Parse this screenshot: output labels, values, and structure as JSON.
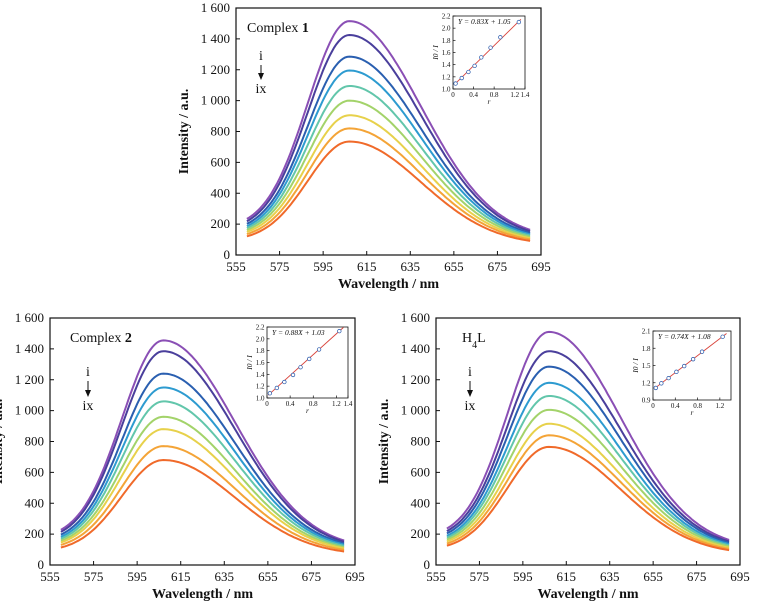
{
  "colors": {
    "curves": [
      "#e8372d",
      "#f06a2a",
      "#f4a437",
      "#e7d14b",
      "#a3d36a",
      "#62c6ab",
      "#2d9bd0",
      "#2a5fb0",
      "#4a3f9c",
      "#8a4fb5"
    ],
    "fit_line": "#d9433b",
    "markers": "#2255aa"
  },
  "chart_data": [
    {
      "type": "line",
      "title_prefix": "Complex ",
      "title_bold": "1",
      "title_sub": "",
      "title_suffix": "",
      "xlabel": "Wavelength / nm",
      "ylabel": "Intensity / a.u.",
      "xlim": [
        555,
        695
      ],
      "ylim": [
        0,
        1600
      ],
      "xticks": [
        555,
        575,
        595,
        615,
        635,
        655,
        675,
        695
      ],
      "yticks": [
        0,
        200,
        400,
        600,
        800,
        1000,
        1200,
        1400,
        1600
      ],
      "xtick_labels": [
        "555",
        "575",
        "595",
        "615",
        "635",
        "655",
        "675",
        "695"
      ],
      "ytick_labels": [
        "0",
        "200",
        "400",
        "600",
        "800",
        "1 000",
        "1 200",
        "1 400",
        "1 600"
      ],
      "x_range_curves": [
        560,
        690
      ],
      "peak_wavelength": 607,
      "curves": [
        {
          "peak": 1515,
          "start": 310,
          "end": 295
        },
        {
          "peak": 1425,
          "start": 290,
          "end": 280
        },
        {
          "peak": 1285,
          "start": 270,
          "end": 265
        },
        {
          "peak": 1195,
          "start": 250,
          "end": 250
        },
        {
          "peak": 1095,
          "start": 235,
          "end": 238
        },
        {
          "peak": 1000,
          "start": 220,
          "end": 225
        },
        {
          "peak": 905,
          "start": 205,
          "end": 212
        },
        {
          "peak": 820,
          "start": 185,
          "end": 198
        },
        {
          "peak": 735,
          "start": 165,
          "end": 180
        }
      ],
      "arrow_top": "i",
      "arrow_bottom": "ix",
      "inset": {
        "equation": "Y = 0.83X + 1.05",
        "ylabel": "I0 / I",
        "xlabel": "r",
        "xlim": [
          0,
          1.4
        ],
        "ylim": [
          1.0,
          2.2
        ],
        "xticks": [
          0,
          0.4,
          0.8,
          1.2
        ],
        "xtick_labels": [
          "0",
          "0.4",
          "0.8",
          "1.2"
        ],
        "xticks_extra": [
          1.4
        ],
        "xtick_labels_extra": [
          "1.4"
        ],
        "yticks": [
          1.0,
          1.2,
          1.4,
          1.6,
          1.8,
          2.0,
          2.2
        ],
        "ytick_labels": [
          "1.0",
          "1.2",
          "1.4",
          "1.6",
          "1.8",
          "2.0",
          "2.2"
        ],
        "slope": 0.83,
        "intercept": 1.05,
        "points_x": [
          0.05,
          0.17,
          0.3,
          0.42,
          0.55,
          0.73,
          0.92,
          1.28
        ],
        "points_y": [
          1.09,
          1.18,
          1.28,
          1.38,
          1.52,
          1.68,
          1.85,
          2.1
        ]
      }
    },
    {
      "type": "line",
      "title_prefix": "Complex ",
      "title_bold": "2",
      "title_sub": "",
      "title_suffix": "",
      "xlabel": "Wavelength / nm",
      "ylabel": "Intensity / a.u.",
      "xlim": [
        555,
        695
      ],
      "ylim": [
        0,
        1600
      ],
      "xticks": [
        555,
        575,
        595,
        615,
        635,
        655,
        675,
        695
      ],
      "yticks": [
        0,
        200,
        400,
        600,
        800,
        1000,
        1200,
        1400,
        1600
      ],
      "xtick_labels": [
        "555",
        "575",
        "595",
        "615",
        "635",
        "655",
        "675",
        "695"
      ],
      "ytick_labels": [
        "0",
        "200",
        "400",
        "600",
        "800",
        "1 000",
        "1 200",
        "1 400",
        "1 600"
      ],
      "x_range_curves": [
        560,
        690
      ],
      "peak_wavelength": 607,
      "curves": [
        {
          "peak": 1455,
          "start": 305,
          "end": 290
        },
        {
          "peak": 1385,
          "start": 285,
          "end": 275
        },
        {
          "peak": 1240,
          "start": 265,
          "end": 262
        },
        {
          "peak": 1150,
          "start": 245,
          "end": 248
        },
        {
          "peak": 1060,
          "start": 230,
          "end": 235
        },
        {
          "peak": 960,
          "start": 215,
          "end": 222
        },
        {
          "peak": 880,
          "start": 200,
          "end": 210
        },
        {
          "peak": 770,
          "start": 180,
          "end": 195
        },
        {
          "peak": 680,
          "start": 155,
          "end": 175
        }
      ],
      "arrow_top": "i",
      "arrow_bottom": "ix",
      "inset": {
        "equation": "Y = 0.88X + 1.03",
        "ylabel": "I0 / I",
        "xlabel": "r",
        "xlim": [
          0,
          1.4
        ],
        "ylim": [
          1.0,
          2.2
        ],
        "xticks": [
          0,
          0.4,
          0.8,
          1.2
        ],
        "xtick_labels": [
          "0",
          "0.4",
          "0.8",
          "1.2"
        ],
        "xticks_extra": [
          1.4
        ],
        "xtick_labels_extra": [
          "1.4"
        ],
        "yticks": [
          1.0,
          1.2,
          1.4,
          1.6,
          1.8,
          2.0,
          2.2
        ],
        "ytick_labels": [
          "1.0",
          "1.2",
          "1.4",
          "1.6",
          "1.8",
          "2.0",
          "2.2"
        ],
        "slope": 0.88,
        "intercept": 1.03,
        "points_x": [
          0.05,
          0.17,
          0.3,
          0.45,
          0.58,
          0.73,
          0.9,
          1.25
        ],
        "points_y": [
          1.08,
          1.17,
          1.27,
          1.39,
          1.52,
          1.66,
          1.82,
          2.13
        ]
      }
    },
    {
      "type": "line",
      "title_prefix": "H",
      "title_bold": "",
      "title_sub": "4",
      "title_suffix": "L",
      "xlabel": "Wavelength / nm",
      "ylabel": "Intensity / a.u.",
      "xlim": [
        555,
        695
      ],
      "ylim": [
        0,
        1600
      ],
      "xticks": [
        555,
        575,
        595,
        615,
        635,
        655,
        675,
        695
      ],
      "yticks": [
        0,
        200,
        400,
        600,
        800,
        1000,
        1200,
        1400,
        1600
      ],
      "xtick_labels": [
        "555",
        "575",
        "595",
        "615",
        "635",
        "655",
        "675",
        "695"
      ],
      "ytick_labels": [
        "0",
        "200",
        "400",
        "600",
        "800",
        "1 000",
        "1 200",
        "1 400",
        "1 600"
      ],
      "x_range_curves": [
        560,
        690
      ],
      "peak_wavelength": 607,
      "curves": [
        {
          "peak": 1510,
          "start": 315,
          "end": 295
        },
        {
          "peak": 1385,
          "start": 295,
          "end": 280
        },
        {
          "peak": 1285,
          "start": 275,
          "end": 268
        },
        {
          "peak": 1180,
          "start": 255,
          "end": 255
        },
        {
          "peak": 1095,
          "start": 240,
          "end": 243
        },
        {
          "peak": 1005,
          "start": 225,
          "end": 232
        },
        {
          "peak": 915,
          "start": 210,
          "end": 220
        },
        {
          "peak": 840,
          "start": 190,
          "end": 205
        },
        {
          "peak": 765,
          "start": 170,
          "end": 190
        }
      ],
      "arrow_top": "i",
      "arrow_bottom": "ix",
      "inset": {
        "equation": "Y = 0.74X + 1.08",
        "ylabel": "I0 / I",
        "xlabel": "r",
        "xlim": [
          0,
          1.4
        ],
        "ylim": [
          0.9,
          2.1
        ],
        "xticks": [
          0,
          0.4,
          0.8,
          1.2
        ],
        "xtick_labels": [
          "0",
          "0.4",
          "0.8",
          "1.2"
        ],
        "xticks_extra": [],
        "xtick_labels_extra": [],
        "yticks": [
          0.9,
          1.2,
          1.5,
          1.8,
          2.1
        ],
        "ytick_labels": [
          "0.9",
          "1.2",
          "1.5",
          "1.8",
          "2.1"
        ],
        "slope": 0.74,
        "intercept": 1.08,
        "points_x": [
          0.05,
          0.15,
          0.28,
          0.42,
          0.56,
          0.72,
          0.88,
          1.25
        ],
        "points_y": [
          1.11,
          1.19,
          1.28,
          1.39,
          1.49,
          1.61,
          1.74,
          2.0
        ]
      }
    }
  ]
}
